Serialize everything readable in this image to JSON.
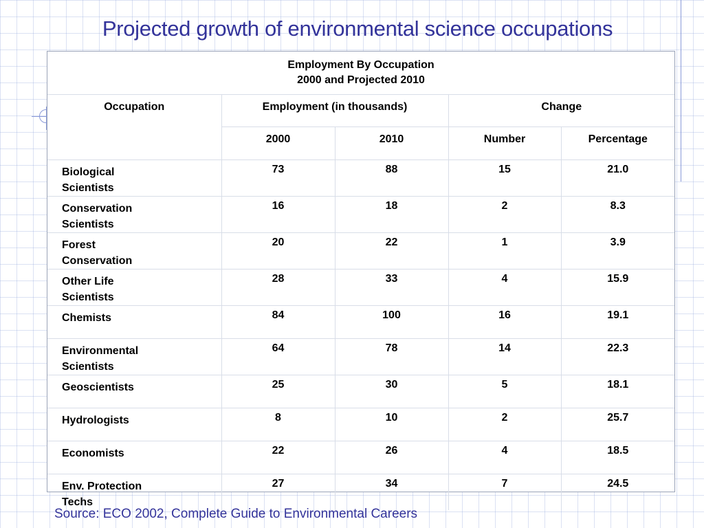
{
  "title": "Projected growth of environmental science occupations",
  "table": {
    "caption_line1": "Employment By Occupation",
    "caption_line2": "2000 and Projected 2010",
    "headers": {
      "occupation": "Occupation",
      "employment": "Employment (in thousands)",
      "change": "Change"
    },
    "subheaders": [
      "2000",
      "2010",
      "Number",
      "Percentage"
    ],
    "rows": [
      {
        "occupation": "Biological Scientists",
        "y2000": "73",
        "y2010": "88",
        "number": "15",
        "percentage": "21.0"
      },
      {
        "occupation": "Conservation Scientists",
        "y2000": "16",
        "y2010": "18",
        "number": "2",
        "percentage": "8.3"
      },
      {
        "occupation": "Forest Conservation",
        "y2000": "20",
        "y2010": "22",
        "number": "1",
        "percentage": "3.9"
      },
      {
        "occupation": "Other Life Scientists",
        "y2000": "28",
        "y2010": "33",
        "number": "4",
        "percentage": "15.9"
      },
      {
        "occupation": "Chemists",
        "y2000": "84",
        "y2010": "100",
        "number": "16",
        "percentage": "19.1"
      },
      {
        "occupation": "Environmental Scientists",
        "y2000": "64",
        "y2010": "78",
        "number": "14",
        "percentage": "22.3"
      },
      {
        "occupation": "Geoscientists",
        "y2000": "25",
        "y2010": "30",
        "number": "5",
        "percentage": "18.1"
      },
      {
        "occupation": "Hydrologists",
        "y2000": "8",
        "y2010": "10",
        "number": "2",
        "percentage": "25.7"
      },
      {
        "occupation": "Economists",
        "y2000": "22",
        "y2010": "26",
        "number": "4",
        "percentage": "18.5"
      },
      {
        "occupation": "Env.  Protection Techs",
        "y2000": "27",
        "y2010": "34",
        "number": "7",
        "percentage": "24.5"
      }
    ]
  },
  "source": "Source:  ECO 2002, Complete Guide to Environmental Careers",
  "colors": {
    "title": "#33339a",
    "accent_lines": "#8a9ad8",
    "grid": "#d8dde8"
  }
}
